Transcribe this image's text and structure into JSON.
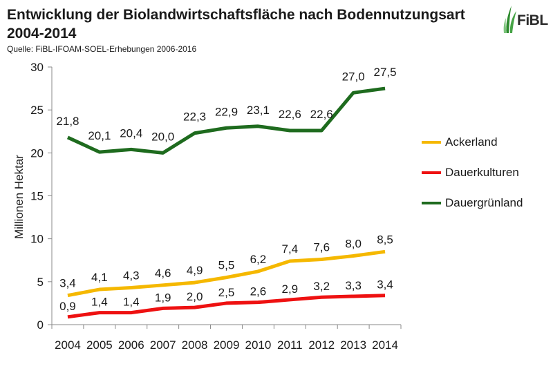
{
  "header": {
    "title_line1": "Entwicklung der Biolandwirtschaftsfläche nach Bodennutzungsart",
    "title_line2": "2004-2014",
    "source": "Quelle: FiBL-IFOAM-SOEL-Erhebungen 2006-2016",
    "logo_text": "FiBL"
  },
  "chart_data": {
    "type": "line",
    "title": "Entwicklung der Biolandwirtschaftsfläche nach Bodennutzungsart 2004-2014",
    "xlabel": "",
    "ylabel": "Millionen Hektar",
    "ylim": [
      0,
      30
    ],
    "yticks": [
      0,
      5,
      10,
      15,
      20,
      25,
      30
    ],
    "grid": false,
    "legend_position": "right",
    "categories": [
      "2004",
      "2005",
      "2006",
      "2007",
      "2008",
      "2009",
      "2010",
      "2011",
      "2012",
      "2013",
      "2014"
    ],
    "series": [
      {
        "name": "Ackerland",
        "color": "#f5b800",
        "values": [
          3.4,
          4.1,
          4.3,
          4.6,
          4.9,
          5.5,
          6.2,
          7.4,
          7.6,
          8.0,
          8.5
        ],
        "labels": [
          "3,4",
          "4,1",
          "4,3",
          "4,6",
          "4,9",
          "5,5",
          "6,2",
          "7,4",
          "7,6",
          "8,0",
          "8,5"
        ]
      },
      {
        "name": "Dauerkulturen",
        "color": "#ee1111",
        "values": [
          0.9,
          1.4,
          1.4,
          1.9,
          2.0,
          2.5,
          2.6,
          2.9,
          3.2,
          3.3,
          3.4
        ],
        "labels": [
          "0,9",
          "1,4",
          "1,4",
          "1,9",
          "2,0",
          "2,5",
          "2,6",
          "2,9",
          "3,2",
          "3,3",
          "3,4"
        ]
      },
      {
        "name": "Dauergrünland",
        "color": "#1e6b1e",
        "values": [
          21.8,
          20.1,
          20.4,
          20.0,
          22.3,
          22.9,
          23.1,
          22.6,
          22.6,
          27.0,
          27.5
        ],
        "labels": [
          "21,8",
          "20,1",
          "20,4",
          "20,0",
          "22,3",
          "22,9",
          "23,1",
          "22,6",
          "22,6",
          "27,0",
          "27,5"
        ]
      }
    ]
  }
}
